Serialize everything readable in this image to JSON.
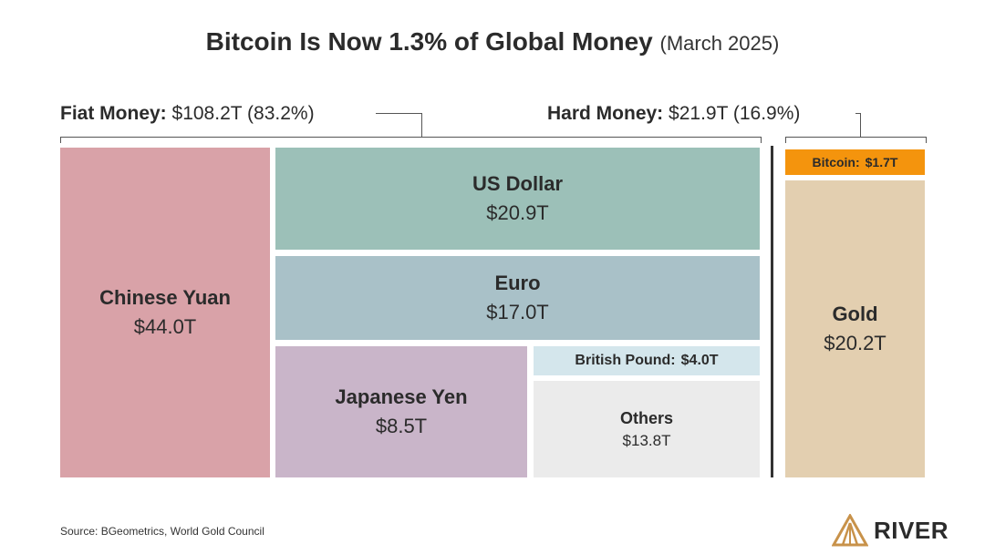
{
  "header": {
    "title": "Bitcoin Is Now 1.3% of Global Money",
    "subtitle": "(March 2025)"
  },
  "groups": {
    "fiat": {
      "label": "Fiat Money:",
      "value": "$108.2T (83.2%)"
    },
    "hard": {
      "label": "Hard Money:",
      "value": "$21.9T (16.9%)"
    }
  },
  "chart_data": {
    "type": "treemap",
    "title": "Bitcoin Is Now 1.3% of Global Money",
    "subtitle": "(March 2025)",
    "unit": "$T",
    "groups": [
      {
        "name": "Fiat Money",
        "total": 108.2,
        "percent": 83.2,
        "items": [
          {
            "name": "Chinese Yuan",
            "value": 44.0,
            "label": "$44.0T",
            "color": "#d9a2a8"
          },
          {
            "name": "US Dollar",
            "value": 20.9,
            "label": "$20.9T",
            "color": "#9cc0b8"
          },
          {
            "name": "Euro",
            "value": 17.0,
            "label": "$17.0T",
            "color": "#a9c1c8"
          },
          {
            "name": "Japanese Yen",
            "value": 8.5,
            "label": "$8.5T",
            "color": "#c9b5c9"
          },
          {
            "name": "British Pound:",
            "value": 4.0,
            "label": "$4.0T",
            "color": "#d4e6ec"
          },
          {
            "name": "Others",
            "value": 13.8,
            "label": "$13.8T",
            "color": "#ebebeb"
          }
        ]
      },
      {
        "name": "Hard Money",
        "total": 21.9,
        "percent": 16.9,
        "items": [
          {
            "name": "Bitcoin:",
            "value": 1.7,
            "label": "$1.7T",
            "color": "#f4940d"
          },
          {
            "name": "Gold",
            "value": 20.2,
            "label": "$20.2T",
            "color": "#e3cfb0"
          }
        ]
      }
    ]
  },
  "footer": {
    "source": "Source: BGeometrics, World Gold Council",
    "brand": "RIVER"
  },
  "colors": {
    "text": "#2b2b2b",
    "logo_gold": "#c8924a"
  }
}
